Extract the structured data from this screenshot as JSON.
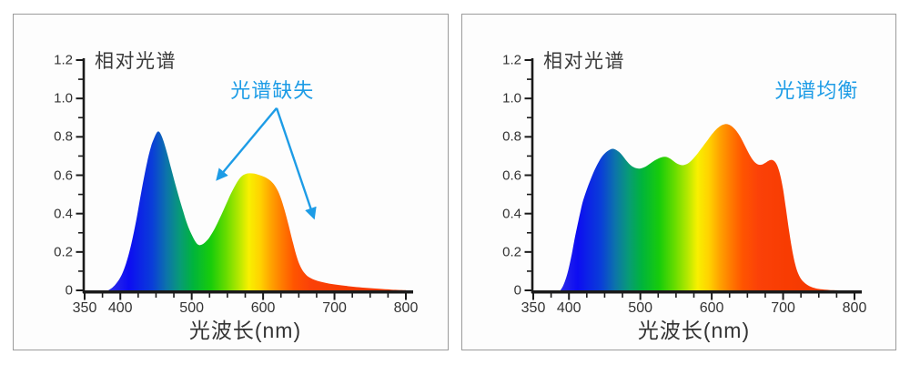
{
  "colors": {
    "annotation": "#1d9ce6",
    "axis": "#1a1a1a",
    "text": "#3a3a3a",
    "panel_border": "#9b9b9b",
    "panel_bg": "#fdfdfd"
  },
  "spectrum_gradient": [
    [
      388,
      "#2a2ae8"
    ],
    [
      412,
      "#0d0df2"
    ],
    [
      445,
      "#0a3ed8"
    ],
    [
      465,
      "#0c74aa"
    ],
    [
      483,
      "#089a78"
    ],
    [
      502,
      "#00b43c"
    ],
    [
      527,
      "#18cc0a"
    ],
    [
      548,
      "#66dc00"
    ],
    [
      566,
      "#b4e800"
    ],
    [
      580,
      "#f8f000"
    ],
    [
      596,
      "#ffd200"
    ],
    [
      611,
      "#ffa300"
    ],
    [
      626,
      "#ff7c00"
    ],
    [
      643,
      "#ff5500"
    ],
    [
      666,
      "#fb4108"
    ],
    [
      705,
      "#f83c02"
    ],
    [
      800,
      "#ef3600"
    ]
  ],
  "chart_data": [
    {
      "type": "area",
      "title": "相对光谱",
      "xlabel": "光波长(nm)",
      "x_range": [
        350,
        800
      ],
      "y_range": [
        0,
        1.2
      ],
      "x_ticks": [
        "350",
        "400",
        "500",
        "600",
        "700",
        "800"
      ],
      "y_ticks": [
        "0",
        "0.2",
        "0.4",
        "0.6",
        "0.8",
        "1.0",
        "1.2"
      ],
      "x_minor_step": 25,
      "y_minor_step": 0.1,
      "annotation": {
        "text": "光谱缺失",
        "x": 613,
        "y": 1.05,
        "color": "#1d9ce6"
      },
      "arrows": [
        {
          "from": [
            619,
            0.95
          ],
          "to": [
            536,
            0.58
          ]
        },
        {
          "from": [
            619,
            0.95
          ],
          "to": [
            671,
            0.38
          ]
        }
      ],
      "series": [
        {
          "name": "relative-spectrum-deficient",
          "points": [
            [
              383,
              0
            ],
            [
              388,
              0.012
            ],
            [
              393,
              0.03
            ],
            [
              398,
              0.055
            ],
            [
              403,
              0.09
            ],
            [
              408,
              0.14
            ],
            [
              413,
              0.205
            ],
            [
              418,
              0.285
            ],
            [
              423,
              0.38
            ],
            [
              428,
              0.485
            ],
            [
              433,
              0.585
            ],
            [
              438,
              0.675
            ],
            [
              443,
              0.75
            ],
            [
              447,
              0.79
            ],
            [
              450,
              0.815
            ],
            [
              453,
              0.828
            ],
            [
              456,
              0.818
            ],
            [
              460,
              0.783
            ],
            [
              465,
              0.722
            ],
            [
              470,
              0.652
            ],
            [
              476,
              0.568
            ],
            [
              482,
              0.488
            ],
            [
              488,
              0.412
            ],
            [
              494,
              0.342
            ],
            [
              500,
              0.29
            ],
            [
              505,
              0.255
            ],
            [
              509,
              0.238
            ],
            [
              513,
              0.237
            ],
            [
              518,
              0.248
            ],
            [
              524,
              0.272
            ],
            [
              530,
              0.307
            ],
            [
              536,
              0.35
            ],
            [
              542,
              0.397
            ],
            [
              548,
              0.447
            ],
            [
              554,
              0.497
            ],
            [
              560,
              0.54
            ],
            [
              565,
              0.572
            ],
            [
              570,
              0.595
            ],
            [
              576,
              0.607
            ],
            [
              582,
              0.61
            ],
            [
              588,
              0.608
            ],
            [
              594,
              0.602
            ],
            [
              600,
              0.594
            ],
            [
              606,
              0.583
            ],
            [
              612,
              0.566
            ],
            [
              618,
              0.537
            ],
            [
              624,
              0.49
            ],
            [
              630,
              0.42
            ],
            [
              636,
              0.335
            ],
            [
              642,
              0.245
            ],
            [
              648,
              0.165
            ],
            [
              654,
              0.112
            ],
            [
              660,
              0.082
            ],
            [
              666,
              0.065
            ],
            [
              674,
              0.052
            ],
            [
              684,
              0.042
            ],
            [
              696,
              0.033
            ],
            [
              710,
              0.026
            ],
            [
              726,
              0.019
            ],
            [
              744,
              0.013
            ],
            [
              762,
              0.008
            ],
            [
              780,
              0.004
            ],
            [
              800,
              0.001
            ]
          ]
        }
      ]
    },
    {
      "type": "area",
      "title": "相对光谱",
      "xlabel": "光波长(nm)",
      "x_range": [
        350,
        800
      ],
      "y_range": [
        0,
        1.2
      ],
      "x_ticks": [
        "350",
        "400",
        "500",
        "600",
        "700",
        "800"
      ],
      "y_ticks": [
        "0",
        "0.2",
        "0.4",
        "0.6",
        "0.8",
        "1.0",
        "1.2"
      ],
      "x_minor_step": 25,
      "y_minor_step": 0.1,
      "annotation": {
        "text": "光谱均衡",
        "x": 747,
        "y": 1.05,
        "color": "#1d9ce6"
      },
      "arrows": [],
      "series": [
        {
          "name": "relative-spectrum-balanced",
          "points": [
            [
              388,
              0
            ],
            [
              392,
              0.025
            ],
            [
              396,
              0.065
            ],
            [
              400,
              0.12
            ],
            [
              404,
              0.19
            ],
            [
              408,
              0.27
            ],
            [
              412,
              0.34
            ],
            [
              416,
              0.41
            ],
            [
              420,
              0.47
            ],
            [
              425,
              0.525
            ],
            [
              430,
              0.575
            ],
            [
              435,
              0.62
            ],
            [
              440,
              0.658
            ],
            [
              445,
              0.69
            ],
            [
              450,
              0.713
            ],
            [
              455,
              0.728
            ],
            [
              460,
              0.737
            ],
            [
              465,
              0.734
            ],
            [
              470,
              0.722
            ],
            [
              475,
              0.702
            ],
            [
              480,
              0.678
            ],
            [
              485,
              0.657
            ],
            [
              490,
              0.643
            ],
            [
              495,
              0.636
            ],
            [
              500,
              0.635
            ],
            [
              505,
              0.641
            ],
            [
              510,
              0.651
            ],
            [
              515,
              0.664
            ],
            [
              520,
              0.677
            ],
            [
              525,
              0.687
            ],
            [
              530,
              0.694
            ],
            [
              535,
              0.696
            ],
            [
              540,
              0.69
            ],
            [
              545,
              0.678
            ],
            [
              550,
              0.664
            ],
            [
              555,
              0.655
            ],
            [
              560,
              0.652
            ],
            [
              565,
              0.658
            ],
            [
              570,
              0.671
            ],
            [
              575,
              0.69
            ],
            [
              580,
              0.712
            ],
            [
              585,
              0.737
            ],
            [
              590,
              0.762
            ],
            [
              595,
              0.787
            ],
            [
              600,
              0.812
            ],
            [
              605,
              0.834
            ],
            [
              610,
              0.851
            ],
            [
              615,
              0.862
            ],
            [
              620,
              0.867
            ],
            [
              625,
              0.862
            ],
            [
              630,
              0.849
            ],
            [
              635,
              0.828
            ],
            [
              640,
              0.8
            ],
            [
              645,
              0.765
            ],
            [
              650,
              0.728
            ],
            [
              655,
              0.694
            ],
            [
              660,
              0.669
            ],
            [
              665,
              0.656
            ],
            [
              670,
              0.655
            ],
            [
              675,
              0.664
            ],
            [
              680,
              0.676
            ],
            [
              684,
              0.68
            ],
            [
              688,
              0.672
            ],
            [
              692,
              0.648
            ],
            [
              696,
              0.6
            ],
            [
              700,
              0.525
            ],
            [
              704,
              0.425
            ],
            [
              708,
              0.32
            ],
            [
              712,
              0.225
            ],
            [
              716,
              0.15
            ],
            [
              720,
              0.098
            ],
            [
              725,
              0.06
            ],
            [
              731,
              0.036
            ],
            [
              738,
              0.02
            ],
            [
              746,
              0.01
            ],
            [
              755,
              0.005
            ],
            [
              765,
              0.002
            ],
            [
              780,
              0
            ]
          ]
        }
      ]
    }
  ]
}
